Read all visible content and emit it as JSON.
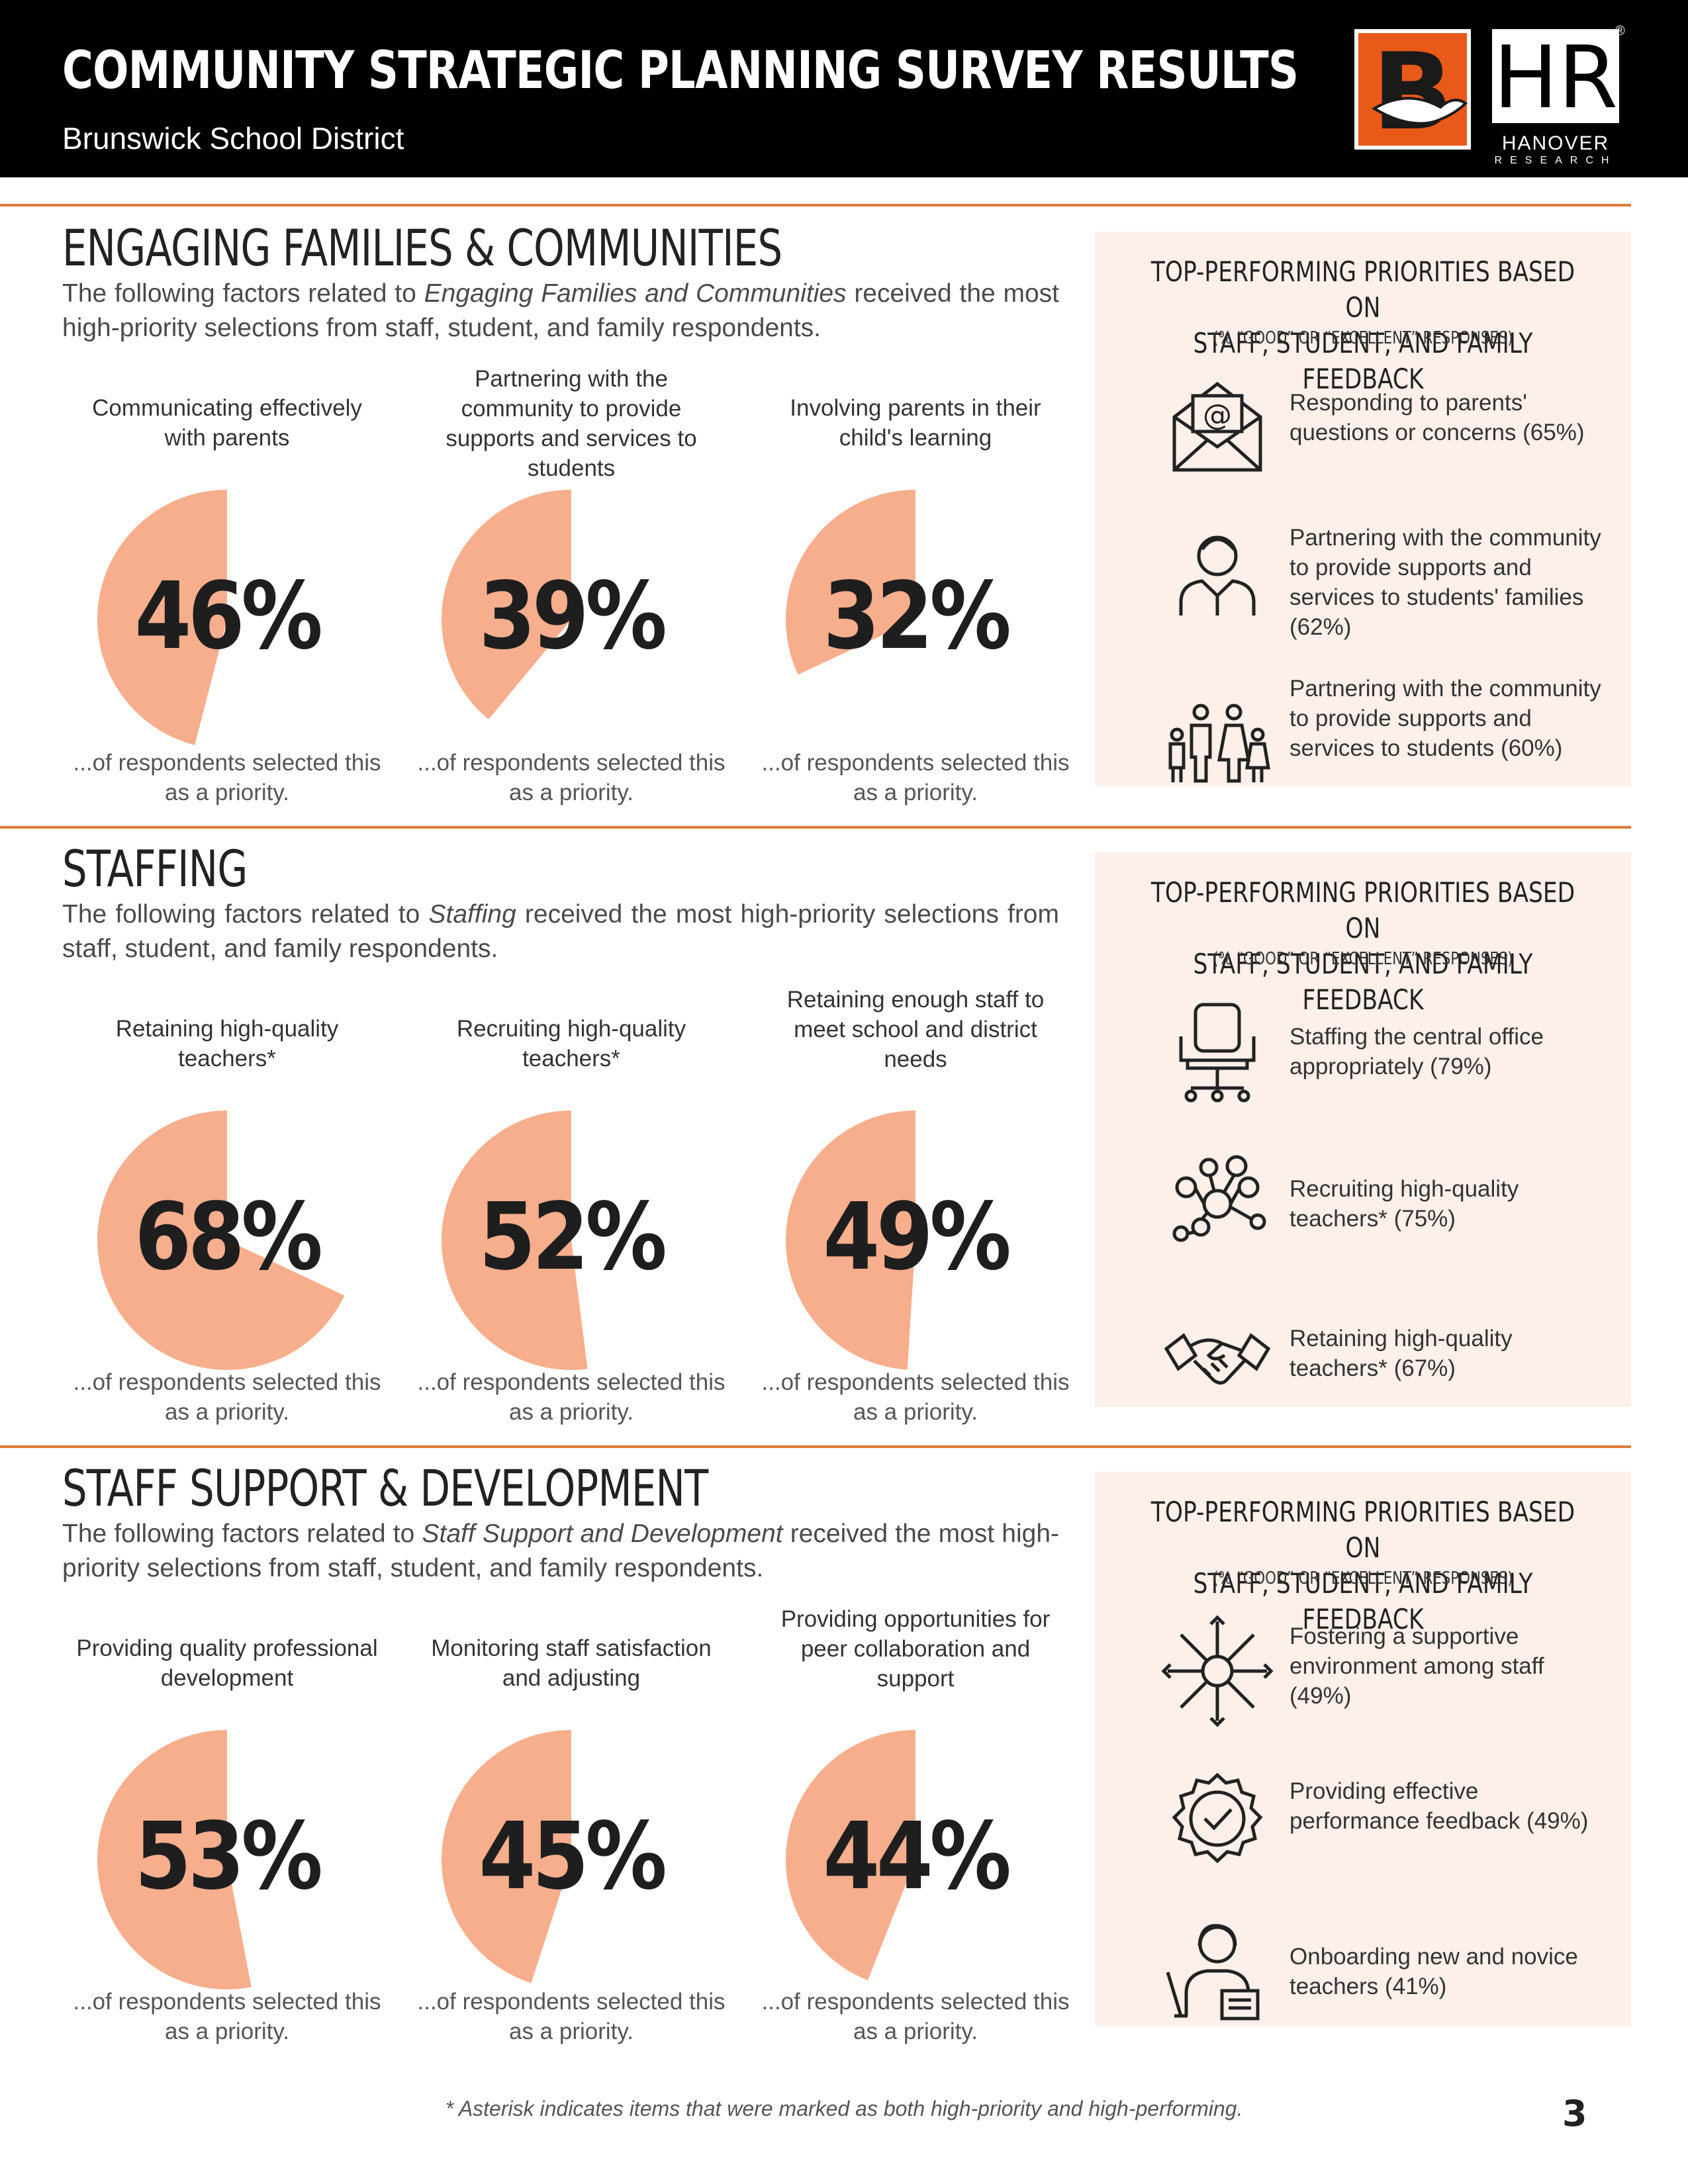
{
  "header": {
    "title": "COMMUNITY STRATEGIC PLANNING SURVEY RESULTS",
    "subtitle": "Brunswick School District",
    "logo_b": "B",
    "hr_logo": "HR",
    "hr_name": "HANOVER",
    "hr_research": "RESEARCH",
    "reg_mark": "®"
  },
  "colors": {
    "accent": "#e07b39",
    "pie": "#f7ae8c",
    "panel": "#fdf0ea",
    "header": "#000000"
  },
  "sections": [
    {
      "title": "ENGAGING FAMILIES & COMMUNITIES",
      "desc_pre": "The following factors related to ",
      "desc_em": "Engaging Families and Communities",
      "desc_post": " received the most high-priority selections from staff, student, and family respondents.",
      "factors": [
        {
          "label": "Communicating effectively with parents",
          "value": 46,
          "pct": "46%",
          "caption": "...of respondents selected this as a priority."
        },
        {
          "label": "Partnering with the community to provide supports and services to students",
          "value": 39,
          "pct": "39%",
          "caption": "...of respondents selected this as a priority."
        },
        {
          "label": "Involving parents in their child's learning",
          "value": 32,
          "pct": "32%",
          "caption": "...of respondents selected this as a priority."
        }
      ],
      "panel": {
        "title_line1": "TOP-PERFORMING PRIORITIES BASED ON",
        "title_line2": "STAFF, STUDENT, AND FAMILY FEEDBACK",
        "subtitle": "(% “GOOD” OR “EXCELLENT” RESPONSES)",
        "items": [
          {
            "icon": "email-envelope-icon",
            "text": "Responding to parents' questions or concerns (65%)"
          },
          {
            "icon": "person-icon",
            "text": "Partnering with the community to provide supports and services to students' families (62%)"
          },
          {
            "icon": "family-icon",
            "text": "Partnering with the community to provide supports and services to students (60%)"
          }
        ]
      }
    },
    {
      "title": "STAFFING",
      "desc_pre": "The following factors related to ",
      "desc_em": "Staffing",
      "desc_post": " received the most high-priority selections from staff, student, and family respondents.",
      "factors": [
        {
          "label": "Retaining high-quality teachers*",
          "value": 68,
          "pct": "68%",
          "caption": "...of respondents selected this as a priority."
        },
        {
          "label": "Recruiting high-quality teachers*",
          "value": 52,
          "pct": "52%",
          "caption": "...of respondents selected this as a priority."
        },
        {
          "label": "Retaining enough staff to meet school and district needs",
          "value": 49,
          "pct": "49%",
          "caption": "...of respondents selected this as a priority."
        }
      ],
      "panel": {
        "title_line1": "TOP-PERFORMING PRIORITIES BASED ON",
        "title_line2": "STAFF, STUDENT, AND FAMILY FEEDBACK",
        "subtitle": "(% “GOOD” OR “EXCELLENT” RESPONSES)",
        "items": [
          {
            "icon": "office-chair-icon",
            "text": "Staffing the central office appropriately (79%)"
          },
          {
            "icon": "network-people-icon",
            "text": "Recruiting high-quality teachers* (75%)"
          },
          {
            "icon": "handshake-icon",
            "text": "Retaining high-quality teachers* (67%)"
          }
        ]
      }
    },
    {
      "title": "STAFF SUPPORT & DEVELOPMENT",
      "desc_pre": "The following factors related to ",
      "desc_em": "Staff Support and Development",
      "desc_post": " received the most high-priority selections from staff, student, and family respondents.",
      "factors": [
        {
          "label": "Providing quality professional development",
          "value": 53,
          "pct": "53%",
          "caption": "...of respondents selected this as a priority."
        },
        {
          "label": "Monitoring staff satisfaction and adjusting",
          "value": 45,
          "pct": "45%",
          "caption": "...of respondents selected this as a priority."
        },
        {
          "label": "Providing opportunities for peer collaboration and support",
          "value": 44,
          "pct": "44%",
          "caption": "...of respondents selected this as a priority."
        }
      ],
      "panel": {
        "title_line1": "TOP-PERFORMING PRIORITIES BASED ON",
        "title_line2": "STAFF, STUDENT, AND FAMILY FEEDBACK",
        "subtitle": "(% “GOOD” OR “EXCELLENT” RESPONSES)",
        "items": [
          {
            "icon": "hands-circle-icon",
            "text": "Fostering a supportive environment among staff (49%)"
          },
          {
            "icon": "badge-check-icon",
            "text": "Providing effective performance feedback (49%)"
          },
          {
            "icon": "teacher-icon",
            "text": "Onboarding new and novice teachers (41%)"
          }
        ]
      }
    }
  ],
  "footnote": "* Asterisk indicates items that were marked as both high-priority and high-performing.",
  "page_number": "3"
}
